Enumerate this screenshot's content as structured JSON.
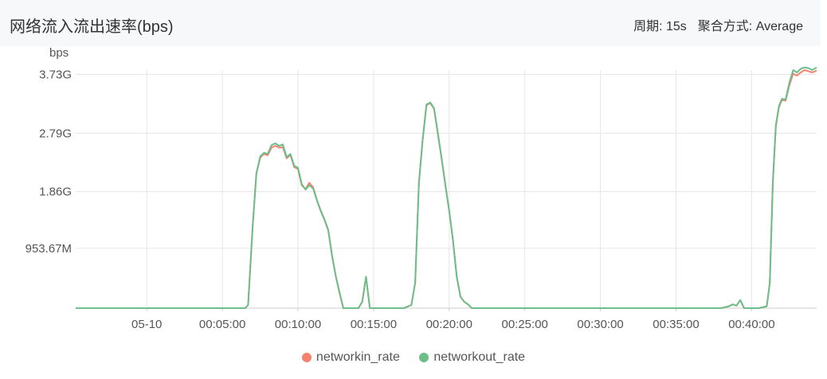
{
  "header": {
    "title": "网络流入流出速率(bps)",
    "period_label": "周期: 15s",
    "aggregation_label": "聚合方式: Average"
  },
  "colors": {
    "networkin": "#f5826f",
    "networkout": "#6cbf8a",
    "grid": "#e6e6e6",
    "axis": "#cccccc"
  },
  "chart_data": {
    "type": "line",
    "ylabel": "bps",
    "y_ticks": [
      {
        "value": 953670000,
        "label": "953.67M"
      },
      {
        "value": 1860000000,
        "label": "1.86G"
      },
      {
        "value": 2790000000,
        "label": "2.79G"
      },
      {
        "value": 3730000000,
        "label": "3.73G"
      }
    ],
    "ylim": [
      0,
      3900000000
    ],
    "x_ticks": [
      {
        "value": 0,
        "label": "05-10"
      },
      {
        "value": 5,
        "label": "00:05:00"
      },
      {
        "value": 10,
        "label": "00:10:00"
      },
      {
        "value": 15,
        "label": "00:15:00"
      },
      {
        "value": 20,
        "label": "00:20:00"
      },
      {
        "value": 25,
        "label": "00:25:00"
      },
      {
        "value": 30,
        "label": "00:30:00"
      },
      {
        "value": 35,
        "label": "00:35:00"
      },
      {
        "value": 40,
        "label": "00:40:00"
      }
    ],
    "xlim": [
      -4.7,
      44.3
    ],
    "x_unit": "minutes",
    "series": [
      {
        "name": "networkin_rate",
        "color_key": "networkin",
        "x": [
          -4.7,
          6.5,
          6.7,
          7.0,
          7.25,
          7.5,
          7.75,
          8.0,
          8.25,
          8.5,
          8.75,
          9.0,
          9.25,
          9.5,
          9.75,
          10.0,
          10.25,
          10.5,
          10.75,
          11.0,
          11.25,
          11.5,
          11.75,
          12.0,
          12.25,
          12.5,
          12.75,
          13.0,
          13.5,
          14.0,
          14.25,
          14.5,
          14.75,
          15.0,
          16.0,
          17.0,
          17.5,
          17.75,
          18.0,
          18.25,
          18.5,
          18.75,
          19.0,
          19.25,
          19.5,
          19.75,
          20.0,
          20.25,
          20.5,
          20.75,
          21.0,
          21.25,
          21.5,
          21.75,
          22.0,
          22.5,
          30.0,
          38.0,
          38.5,
          38.75,
          39.0,
          39.25,
          39.5,
          40.0,
          40.5,
          41.0,
          41.2,
          41.4,
          41.6,
          41.8,
          42.0,
          42.25,
          42.5,
          42.75,
          43.0,
          43.25,
          43.5,
          43.75,
          44.0,
          44.3
        ],
        "y": [
          0,
          0,
          50000000,
          1300000000,
          2150000000,
          2400000000,
          2460000000,
          2440000000,
          2560000000,
          2590000000,
          2560000000,
          2570000000,
          2390000000,
          2440000000,
          2250000000,
          2220000000,
          1960000000,
          1900000000,
          2000000000,
          1930000000,
          1730000000,
          1560000000,
          1420000000,
          1250000000,
          850000000,
          520000000,
          250000000,
          0,
          0,
          0,
          100000000,
          500000000,
          0,
          0,
          0,
          0,
          50000000,
          400000000,
          2000000000,
          2700000000,
          3240000000,
          3270000000,
          3180000000,
          2780000000,
          2380000000,
          1950000000,
          1550000000,
          1080000000,
          500000000,
          180000000,
          100000000,
          60000000,
          0,
          0,
          0,
          0,
          0,
          0,
          30000000,
          60000000,
          40000000,
          130000000,
          0,
          0,
          0,
          30000000,
          400000000,
          2000000000,
          2900000000,
          3200000000,
          3320000000,
          3310000000,
          3560000000,
          3740000000,
          3710000000,
          3760000000,
          3800000000,
          3780000000,
          3760000000,
          3790000000
        ]
      },
      {
        "name": "networkout_rate",
        "color_key": "networkout",
        "x": [
          -4.7,
          6.5,
          6.7,
          7.0,
          7.25,
          7.5,
          7.75,
          8.0,
          8.25,
          8.5,
          8.75,
          9.0,
          9.25,
          9.5,
          9.75,
          10.0,
          10.25,
          10.5,
          10.75,
          11.0,
          11.25,
          11.5,
          11.75,
          12.0,
          12.25,
          12.5,
          12.75,
          13.0,
          13.5,
          14.0,
          14.25,
          14.5,
          14.75,
          15.0,
          16.0,
          17.0,
          17.5,
          17.75,
          18.0,
          18.25,
          18.5,
          18.75,
          19.0,
          19.25,
          19.5,
          19.75,
          20.0,
          20.25,
          20.5,
          20.75,
          21.0,
          21.25,
          21.5,
          21.75,
          22.0,
          22.5,
          30.0,
          38.0,
          38.5,
          38.75,
          39.0,
          39.25,
          39.5,
          40.0,
          40.5,
          41.0,
          41.2,
          41.4,
          41.6,
          41.8,
          42.0,
          42.25,
          42.5,
          42.75,
          43.0,
          43.25,
          43.5,
          43.75,
          44.0,
          44.3
        ],
        "y": [
          0,
          0,
          50000000,
          1300000000,
          2150000000,
          2420000000,
          2480000000,
          2460000000,
          2600000000,
          2630000000,
          2590000000,
          2610000000,
          2410000000,
          2460000000,
          2270000000,
          2240000000,
          1980000000,
          1890000000,
          1960000000,
          1910000000,
          1720000000,
          1550000000,
          1410000000,
          1240000000,
          840000000,
          510000000,
          240000000,
          0,
          0,
          0,
          100000000,
          500000000,
          0,
          0,
          0,
          0,
          50000000,
          400000000,
          2000000000,
          2700000000,
          3250000000,
          3280000000,
          3190000000,
          2790000000,
          2390000000,
          1960000000,
          1560000000,
          1090000000,
          500000000,
          180000000,
          100000000,
          60000000,
          0,
          0,
          0,
          0,
          0,
          0,
          30000000,
          60000000,
          40000000,
          130000000,
          0,
          0,
          0,
          30000000,
          400000000,
          2000000000,
          2920000000,
          3220000000,
          3340000000,
          3330000000,
          3600000000,
          3800000000,
          3760000000,
          3820000000,
          3840000000,
          3830000000,
          3800000000,
          3840000000
        ]
      }
    ],
    "legend": [
      "networkin_rate",
      "networkout_rate"
    ],
    "legend_position": "bottom",
    "grid": true
  }
}
